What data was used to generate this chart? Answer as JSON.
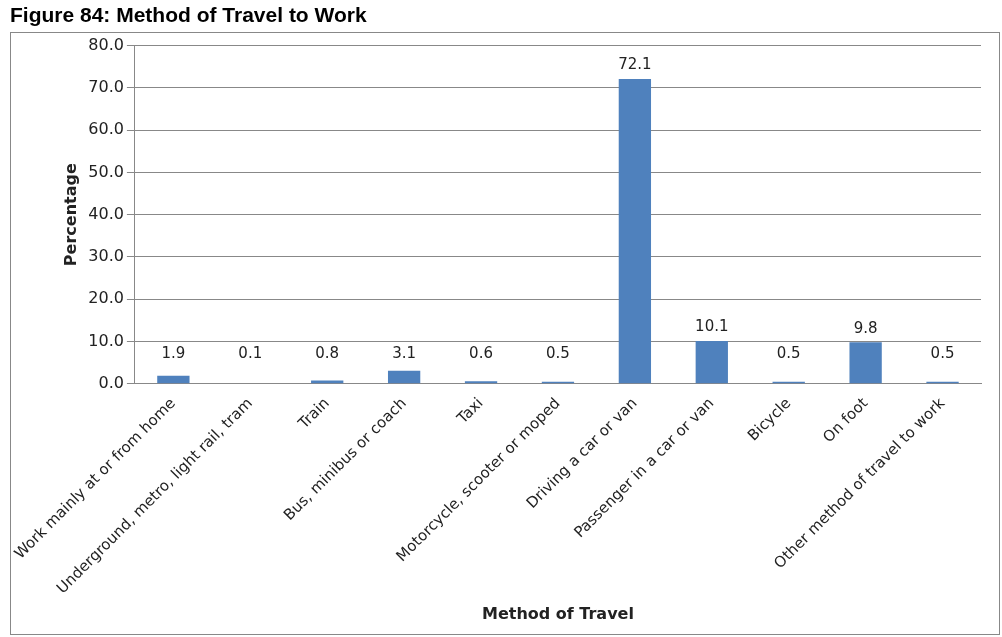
{
  "chart_data": {
    "type": "bar",
    "title": "Figure 84: Method of Travel to Work",
    "xlabel": "Method of Travel",
    "ylabel": "Percentage",
    "categories": [
      "Work mainly at or from home",
      "Underground, metro, light rail, tram",
      "Train",
      "Bus, minibus or coach",
      "Taxi",
      "Motorcycle, scooter or moped",
      "Driving a car or van",
      "Passenger in a car or van",
      "Bicycle",
      "On foot",
      "Other method of travel to work"
    ],
    "values": [
      1.9,
      0.1,
      0.8,
      3.1,
      0.6,
      0.5,
      72.1,
      10.1,
      0.5,
      9.8,
      0.5
    ],
    "color": "#4f81bd",
    "ylim": [
      0,
      80
    ],
    "yticks": [
      {
        "value": 0,
        "label": "0.0"
      },
      {
        "value": 10,
        "label": "10.0"
      },
      {
        "value": 20,
        "label": "20.0"
      },
      {
        "value": 30,
        "label": "30.0"
      },
      {
        "value": 40,
        "label": "40.0"
      },
      {
        "value": 50,
        "label": "50.0"
      },
      {
        "value": 60,
        "label": "60.0"
      },
      {
        "value": 70,
        "label": "70.0"
      },
      {
        "value": 80,
        "label": "80.0"
      }
    ],
    "grid": "y",
    "data_labels": true
  }
}
